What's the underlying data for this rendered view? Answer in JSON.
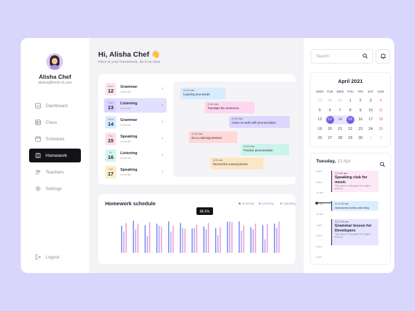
{
  "user": {
    "name": "Alisha Chef",
    "email": "alisha@fresh-d.com"
  },
  "nav": [
    {
      "label": "Dashboard",
      "icon": "dashboard-icon"
    },
    {
      "label": "Class",
      "icon": "class-icon"
    },
    {
      "label": "Schedule",
      "icon": "calendar-icon"
    },
    {
      "label": "Homework",
      "icon": "book-icon",
      "active": true
    },
    {
      "label": "Teachers",
      "icon": "teachers-icon"
    },
    {
      "label": "Settings",
      "icon": "gear-icon"
    }
  ],
  "logout_label": "Logout",
  "header": {
    "greeting": "Hi, Alisha Chef 👋",
    "subtitle": "Here is your homework, do it on time."
  },
  "tasks": [
    {
      "weekday": "Mon",
      "day": "12",
      "title": "Grammar",
      "level": "Level A2",
      "color": "#ffe3ef",
      "selected": false
    },
    {
      "weekday": "Tue",
      "day": "13",
      "title": "Listening",
      "level": "Level A2",
      "color": "#d9d3ff",
      "selected": true
    },
    {
      "weekday": "Wed",
      "day": "14",
      "title": "Grammar",
      "level": "Level A1",
      "color": "#d6ecff",
      "selected": false
    },
    {
      "weekday": "Thu",
      "day": "15",
      "title": "Speaking",
      "level": "Level B2",
      "color": "#fde0ea",
      "selected": false
    },
    {
      "weekday": "Fri",
      "day": "16",
      "title": "Listening",
      "level": "Level A2",
      "color": "#d6f4ef",
      "selected": false
    },
    {
      "weekday": "Sat",
      "day": "17",
      "title": "Speaking",
      "level": "Level B1",
      "color": "#fdebc9",
      "selected": false
    }
  ],
  "timeline": [
    {
      "duration": "20 min",
      "text": "Learning new words",
      "color": "#d6ecff"
    },
    {
      "duration": "40 min",
      "text": "Translate the sentences",
      "color": "#ffd6f0"
    },
    {
      "duration": "20 min",
      "text": "Listen to audio with pronunciation",
      "color": "#dcd7ff"
    },
    {
      "duration": "20 min",
      "text": "Do a Listening Session",
      "color": "#ffd8d8"
    },
    {
      "duration": "20 min",
      "text": "Practice pronunciation",
      "color": "#cdf4ec"
    },
    {
      "duration": "5 min",
      "text": "Record the sound practice",
      "color": "#fde6c4"
    }
  ],
  "homework_chart": {
    "title": "Homework schedule",
    "tooltip": "88.6%",
    "legend": [
      {
        "name": "Grammar",
        "color": "#7a8cf5"
      },
      {
        "name": "Listening",
        "color": "#b7a8f5"
      },
      {
        "name": "Speaking",
        "color": "#f39ad4"
      }
    ]
  },
  "chart_data": {
    "type": "bar",
    "title": "Homework schedule",
    "series": [
      {
        "name": "Grammar",
        "values": [
          76,
          90,
          78,
          82,
          88,
          84,
          68,
          74,
          70,
          87,
          88,
          72,
          78,
          82
        ]
      },
      {
        "name": "Listening",
        "values": [
          60,
          66,
          48,
          76,
          60,
          70,
          70,
          66,
          50,
          88,
          62,
          66,
          38,
          70
        ]
      },
      {
        "name": "Speaking",
        "values": [
          84,
          82,
          86,
          74,
          76,
          68,
          80,
          84,
          72,
          86,
          76,
          82,
          80,
          88
        ]
      }
    ],
    "ylim": [
      0,
      100
    ],
    "grid": false,
    "legend_position": "top-right"
  },
  "search": {
    "placeholder": "Search"
  },
  "calendar": {
    "title": "April 2021",
    "headers": [
      "MON",
      "TUE",
      "WED",
      "THU",
      "FRI",
      "SAT",
      "SUN"
    ],
    "days": [
      "29",
      "30",
      "31",
      "1",
      "2",
      "3",
      "4",
      "5",
      "6",
      "7",
      "8",
      "9",
      "10",
      "11",
      "12",
      "13",
      "14",
      "15",
      "16",
      "17",
      "18",
      "19",
      "20",
      "21",
      "22",
      "23",
      "24",
      "25",
      "26",
      "27",
      "28",
      "29",
      "30",
      "1",
      "2"
    ]
  },
  "schedule": {
    "day": "Tuesday,",
    "date": "13 Apr",
    "times": [
      "8 am",
      "9 am",
      "10 am",
      "11 am",
      "12 pm",
      "1 pm",
      "2 pm",
      "3 pm",
      "4 pm"
    ],
    "items": [
      {
        "time": "9:00 am",
        "title": "Speaking club for music",
        "desc": "This lesson is designed for english level A2",
        "color": "#fde8f6"
      },
      {
        "time": "11:30 am",
        "title": "Homework review with Mary",
        "desc": "",
        "color": "#dbeeff"
      },
      {
        "time": "12:20 pm",
        "title": "Grammar lesson for Developers",
        "desc": "This lesson is designed for english level A1",
        "color": "#e6e4ff"
      }
    ]
  }
}
